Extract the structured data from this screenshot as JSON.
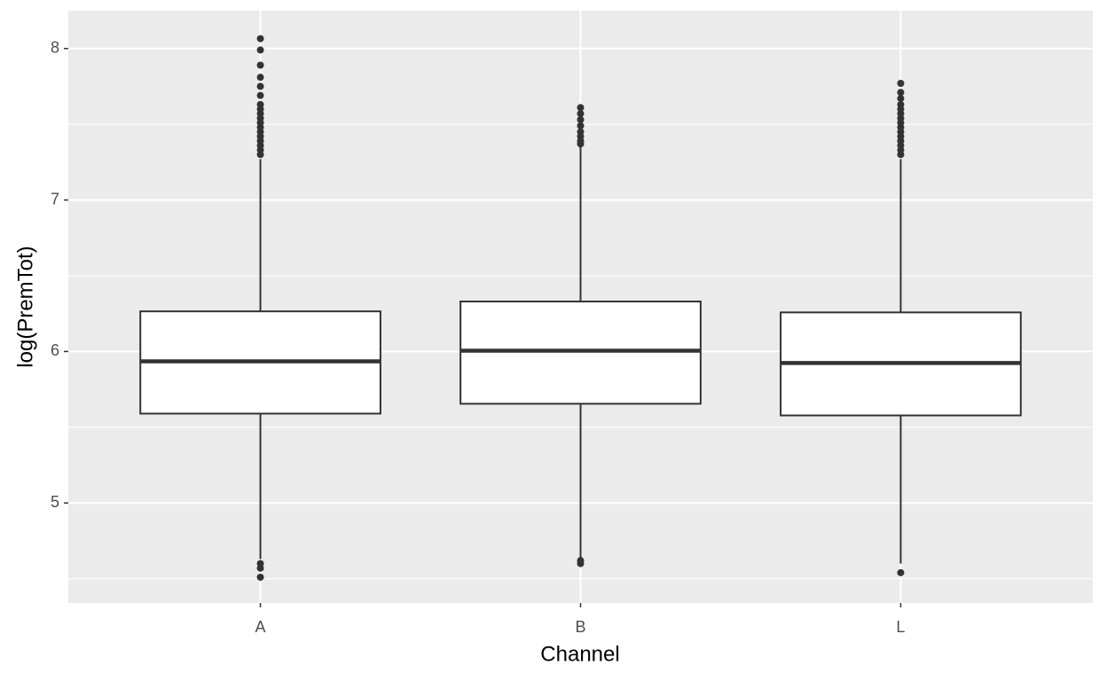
{
  "chart_data": {
    "type": "boxplot",
    "x_label": "Channel",
    "y_label": "log(PremTot)",
    "categories": [
      "A",
      "B",
      "L"
    ],
    "boxes": [
      {
        "whisker_low": 4.63,
        "q1": 5.59,
        "median": 5.935,
        "q3": 6.265,
        "whisker_high": 7.27,
        "outliers": [
          8.065,
          7.99,
          7.89,
          7.81,
          7.75,
          7.69,
          7.63,
          7.6,
          7.57,
          7.54,
          7.51,
          7.48,
          7.45,
          7.42,
          7.39,
          7.36,
          7.33,
          7.3,
          4.6,
          4.57,
          4.51
        ]
      },
      {
        "whisker_low": 4.64,
        "q1": 5.655,
        "median": 6.005,
        "q3": 6.33,
        "whisker_high": 7.35,
        "outliers": [
          7.61,
          7.57,
          7.53,
          7.49,
          7.45,
          7.42,
          7.39,
          7.37,
          4.62,
          4.6
        ]
      },
      {
        "whisker_low": 4.6,
        "q1": 5.578,
        "median": 5.924,
        "q3": 6.258,
        "whisker_high": 7.27,
        "outliers": [
          7.77,
          7.71,
          7.67,
          7.63,
          7.6,
          7.57,
          7.54,
          7.51,
          7.48,
          7.45,
          7.42,
          7.39,
          7.36,
          7.33,
          7.3,
          4.54
        ]
      }
    ],
    "ylim": [
      4.34,
      8.25
    ],
    "yticks": [
      5,
      6,
      7,
      8
    ],
    "minor_yticks": [
      4.5,
      5.5,
      6.5,
      7.5
    ],
    "box_fill": "#ffffff",
    "line_color": "#333333",
    "grid": true
  }
}
